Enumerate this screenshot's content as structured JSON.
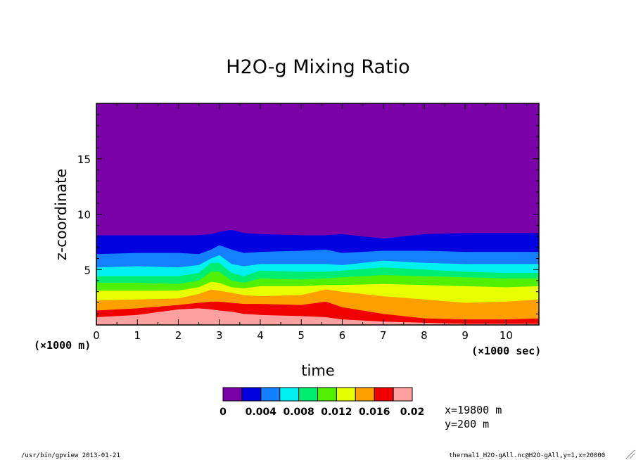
{
  "chart_data": {
    "type": "heatmap",
    "title": "H2O-g Mixing Ratio",
    "xlabel": "time",
    "ylabel": "z-coordinate",
    "x_unit_label": "(×1000 sec)",
    "y_unit_label": "(×1000 m)",
    "xlim": [
      0,
      10.8
    ],
    "ylim": [
      0,
      20
    ],
    "x_ticks": [
      "0",
      "1",
      "2",
      "3",
      "4",
      "5",
      "6",
      "7",
      "8",
      "9",
      "10"
    ],
    "y_ticks": [
      "5",
      "10",
      "15"
    ],
    "x_tick_values": [
      0,
      1,
      2,
      3,
      4,
      5,
      6,
      7,
      8,
      9,
      10
    ],
    "y_tick_values": [
      5,
      10,
      15
    ],
    "levels": [
      0,
      0.002,
      0.004,
      0.006,
      0.008,
      0.01,
      0.012,
      0.014,
      0.016,
      0.018,
      0.02
    ],
    "colors": [
      "#7a00a8",
      "#0000e0",
      "#1480ff",
      "#00f0f0",
      "#00ee70",
      "#50f000",
      "#e8ff00",
      "#ffa000",
      "#f00000",
      "#ffa0a0"
    ],
    "colorbar_labels": [
      "0",
      "0.004",
      "0.008",
      "0.012",
      "0.016",
      "0.02"
    ],
    "band_x": [
      0,
      1,
      2,
      2.5,
      2.8,
      3.0,
      3.3,
      3.6,
      4,
      5,
      5.6,
      6,
      7,
      8,
      9,
      10,
      10.8
    ],
    "bands": [
      {
        "level": "0.002-0.004",
        "top": [
          8.1,
          8.1,
          8.1,
          8.1,
          8.2,
          8.4,
          8.6,
          8.3,
          8.2,
          8.1,
          8.1,
          8.2,
          7.8,
          8.2,
          8.3,
          8.3,
          8.3
        ]
      },
      {
        "level": "0.004-0.006",
        "top": [
          6.4,
          6.5,
          6.5,
          6.4,
          6.8,
          7.2,
          6.8,
          6.5,
          6.6,
          6.7,
          6.8,
          6.5,
          6.7,
          6.7,
          6.6,
          6.6,
          6.6
        ]
      },
      {
        "level": "0.006-0.008",
        "top": [
          5.2,
          5.3,
          5.2,
          5.4,
          6.0,
          6.3,
          5.5,
          5.3,
          5.5,
          5.5,
          5.5,
          5.4,
          5.8,
          5.6,
          5.5,
          5.5,
          5.5
        ]
      },
      {
        "level": "0.008-0.010",
        "top": [
          4.4,
          4.4,
          4.4,
          4.7,
          5.6,
          5.6,
          4.7,
          4.4,
          4.9,
          4.8,
          4.8,
          4.9,
          5.2,
          5.0,
          4.8,
          4.7,
          4.7
        ]
      },
      {
        "level": "0.010-0.012",
        "top": [
          3.8,
          3.8,
          3.7,
          4.0,
          4.8,
          4.8,
          4.0,
          3.8,
          4.2,
          4.1,
          4.2,
          4.3,
          4.5,
          4.4,
          4.3,
          4.2,
          4.2
        ]
      },
      {
        "level": "0.012-0.014",
        "top": [
          3.1,
          3.1,
          3.1,
          3.4,
          3.9,
          3.8,
          3.4,
          3.3,
          3.5,
          3.5,
          3.6,
          3.6,
          3.7,
          3.6,
          3.5,
          3.4,
          3.5
        ]
      },
      {
        "level": "0.014-0.016",
        "top": [
          2.2,
          2.3,
          2.4,
          2.8,
          3.2,
          3.1,
          2.9,
          2.7,
          2.6,
          2.7,
          3.2,
          3.0,
          2.6,
          2.3,
          2.0,
          2.1,
          2.3
        ]
      },
      {
        "level": "0.016-0.018",
        "top": [
          1.3,
          1.5,
          1.8,
          2.0,
          2.1,
          2.1,
          2.0,
          1.9,
          1.9,
          1.8,
          2.1,
          1.6,
          1.0,
          0.6,
          0.5,
          0.5,
          0.6
        ]
      },
      {
        "level": "0.018-0.020",
        "top": [
          0.7,
          0.9,
          1.4,
          1.5,
          1.4,
          1.3,
          1.2,
          1.0,
          0.9,
          0.8,
          0.7,
          0.5,
          0.3,
          0.2,
          0.1,
          0.1,
          0.1
        ]
      }
    ],
    "annotations": [
      "x=19800 m",
      "y=200 m"
    ]
  },
  "footer": {
    "left": "/usr/bin/gpview  2013-01-21",
    "right": "thermal1_H2O-gAll.nc@H2O-gAll,y=1,x=20000"
  }
}
